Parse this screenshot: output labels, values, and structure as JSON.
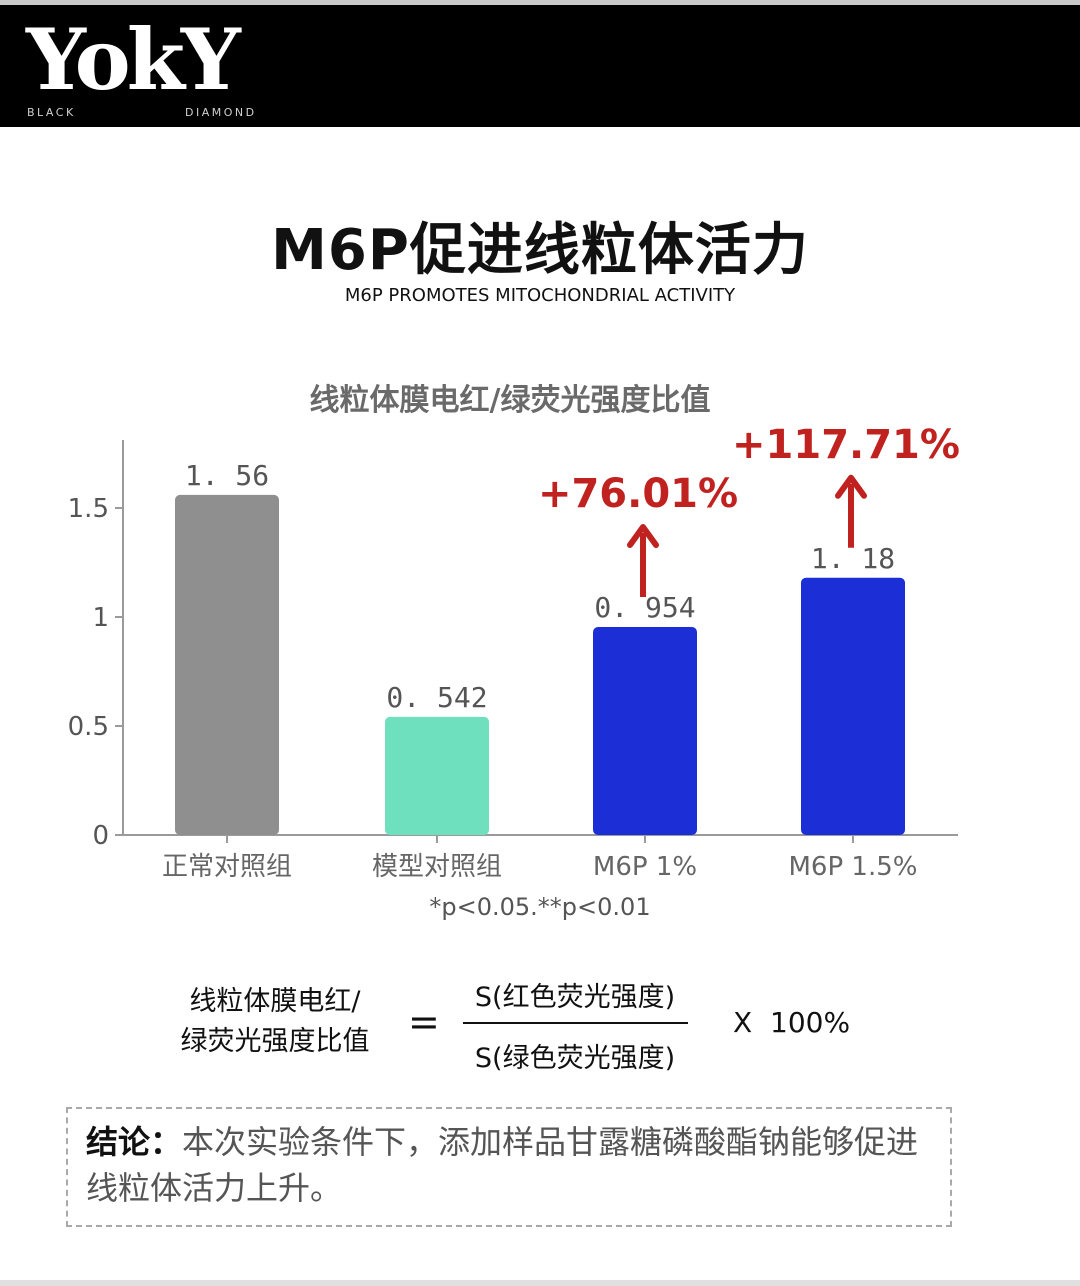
{
  "brand": {
    "logo": "YokY",
    "sub_left": "BLACK",
    "sub_right": "DIAMOND"
  },
  "header": {
    "title": "M6P促进线粒体活力",
    "subtitle": "M6P PROMOTES MITOCHONDRIAL ACTIVITY"
  },
  "chart_data": {
    "type": "bar",
    "title": "线粒体膜电红/绿荧光强度比值",
    "categories": [
      "正常对照组",
      "模型对照组",
      "M6P 1%",
      "M6P 1.5%"
    ],
    "values": [
      1.56,
      0.542,
      0.954,
      1.18
    ],
    "value_labels": [
      "1. 56",
      "0. 542",
      "0. 954",
      "1. 18"
    ],
    "colors": [
      "#8f8f8f",
      "#6fe0bd",
      "#1c2fd6",
      "#1c2fd6"
    ],
    "ylim": [
      0,
      1.8
    ],
    "yticks": [
      0,
      0.5,
      1,
      1.5
    ],
    "ytick_labels": [
      "0",
      "0.5",
      "1",
      "1.5"
    ],
    "xlabel": "",
    "ylabel": "",
    "grid": false,
    "footnote": "*p<0.05.**p<0.01",
    "annotations": [
      {
        "category": "M6P 1%",
        "text": "+76.01%",
        "color": "#c0221f"
      },
      {
        "category": "M6P 1.5%",
        "text": "+117.71%",
        "color": "#c0221f"
      }
    ]
  },
  "formula": {
    "lhs_line1": "线粒体膜电红/",
    "lhs_line2": "绿荧光强度比值",
    "equals": "=",
    "numerator": "S(红色荧光强度)",
    "denominator": "S(绿色荧光强度)",
    "times": "X",
    "factor": "100%"
  },
  "conclusion": {
    "label": "结论：",
    "text": "本次实验条件下，添加样品甘露糖磷酸酯钠能够促进线粒体活力上升。"
  }
}
